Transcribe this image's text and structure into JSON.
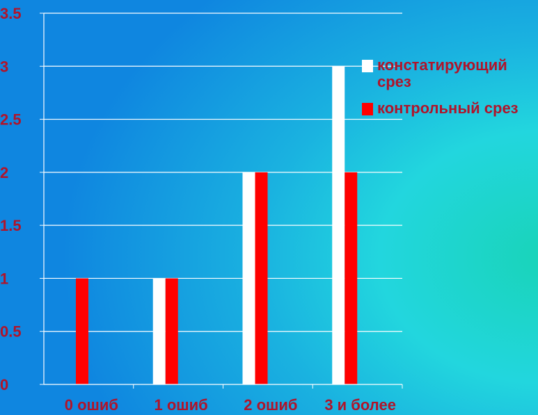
{
  "chart_data": {
    "type": "bar",
    "categories": [
      "0 ошиб",
      "1 ошиб",
      "2 ошиб",
      "3 и более"
    ],
    "series": [
      {
        "name": "констатирующий срез",
        "values": [
          0,
          1,
          2,
          3
        ],
        "color": "#ffffff"
      },
      {
        "name": "контрольный срез",
        "values": [
          1,
          1,
          2,
          2
        ],
        "color": "#ff0000"
      }
    ],
    "y_ticks": [
      "0",
      "0.5",
      "1",
      "1.5",
      "2",
      "2.5",
      "3",
      "3.5"
    ],
    "ylim": [
      0,
      3.5
    ],
    "grid": true,
    "legend_position": "right",
    "label_color": "#b0142a"
  }
}
